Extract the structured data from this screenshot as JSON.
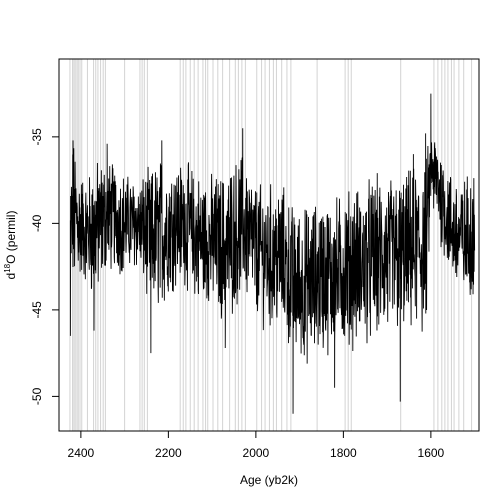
{
  "chart_data": {
    "type": "line",
    "title": "",
    "xlabel": "Age (yb2k)",
    "ylabel": "d18O (permil)",
    "ylabel_parts": {
      "prefix": "d",
      "superscript": "18",
      "suffix": "O (permil)"
    },
    "x_reversed": true,
    "xlim": [
      2450,
      1490
    ],
    "ylim": [
      -52,
      -30.5
    ],
    "x_ticks": [
      2400,
      2200,
      2000,
      1800,
      1600
    ],
    "y_ticks": [
      -35,
      -40,
      -45,
      -50
    ],
    "grid": false,
    "legend": "none",
    "colors": {
      "series": "#000000",
      "markers": "#d3d3d3",
      "axis": "#000000"
    },
    "reference_lines_x": [
      2425,
      2419,
      2416,
      2413,
      2409,
      2406,
      2402,
      2398,
      2385,
      2371,
      2366,
      2361,
      2355,
      2349,
      2344,
      2300,
      2265,
      2260,
      2255,
      2248,
      2173,
      2166,
      2160,
      2150,
      2141,
      2132,
      2121,
      2115,
      2110,
      2098,
      2087,
      2076,
      2060,
      2047,
      2040,
      2032,
      2024,
      1998,
      1987,
      1979,
      1969,
      1960,
      1953,
      1941,
      1929,
      1920,
      1860,
      1796,
      1789,
      1782,
      1669,
      1593,
      1584,
      1575,
      1568,
      1561,
      1553,
      1547,
      1536,
      1525,
      1507
    ],
    "series": [
      {
        "x_start": 2424,
        "x_end": 1500,
        "segments": [
          {
            "x": 2424,
            "mean": -40.5,
            "spread": 3.5,
            "min": -46.5
          },
          {
            "x": 2418,
            "mean": -39.5,
            "spread": 3.8,
            "max": -35.2
          },
          {
            "x": 2405,
            "mean": -40.0,
            "spread": 3.0
          },
          {
            "x": 2390,
            "mean": -40.5,
            "spread": 2.5
          },
          {
            "x": 2370,
            "mean": -40.5,
            "spread": 3.5,
            "min": -46.2
          },
          {
            "x": 2340,
            "mean": -39.5,
            "spread": 2.8,
            "max": -35.4
          },
          {
            "x": 2300,
            "mean": -40.0,
            "spread": 2.5
          },
          {
            "x": 2270,
            "mean": -40.0,
            "spread": 2.2
          },
          {
            "x": 2240,
            "mean": -41.0,
            "spread": 3.5,
            "min": -47.5
          },
          {
            "x": 2215,
            "mean": -40.5,
            "spread": 3.8,
            "max": -35.2
          },
          {
            "x": 2190,
            "mean": -40.0,
            "spread": 3.2
          },
          {
            "x": 2160,
            "mean": -40.0,
            "spread": 3.0
          },
          {
            "x": 2130,
            "mean": -41.0,
            "spread": 3.3
          },
          {
            "x": 2100,
            "mean": -41.0,
            "spread": 3.2
          },
          {
            "x": 2070,
            "mean": -41.5,
            "spread": 3.8,
            "min": -47.2
          },
          {
            "x": 2030,
            "mean": -40.0,
            "spread": 3.5,
            "max": -34.5
          },
          {
            "x": 2000,
            "mean": -41.5,
            "spread": 3.2
          },
          {
            "x": 1970,
            "mean": -42.0,
            "spread": 3.6
          },
          {
            "x": 1940,
            "mean": -42.0,
            "spread": 3.6
          },
          {
            "x": 1915,
            "mean": -43.5,
            "spread": 3.8,
            "min": -51.0
          },
          {
            "x": 1880,
            "mean": -43.5,
            "spread": 3.8
          },
          {
            "x": 1850,
            "mean": -43.0,
            "spread": 3.8
          },
          {
            "x": 1820,
            "mean": -43.0,
            "spread": 3.8,
            "min": -49.5
          },
          {
            "x": 1790,
            "mean": -42.5,
            "spread": 3.8
          },
          {
            "x": 1760,
            "mean": -42.5,
            "spread": 4.0
          },
          {
            "x": 1730,
            "mean": -42.0,
            "spread": 4.0
          },
          {
            "x": 1700,
            "mean": -42.0,
            "spread": 4.0
          },
          {
            "x": 1670,
            "mean": -42.0,
            "spread": 4.0,
            "min": -50.3
          },
          {
            "x": 1640,
            "mean": -41.5,
            "spread": 4.0,
            "max": -36.0
          },
          {
            "x": 1612,
            "mean": -41.5,
            "spread": 4.5,
            "max": -34.8
          },
          {
            "x": 1600,
            "mean": -37.0,
            "spread": 2.0,
            "max": -32.5
          },
          {
            "x": 1588,
            "mean": -37.5,
            "spread": 2.3
          },
          {
            "x": 1570,
            "mean": -39.0,
            "spread": 2.5
          },
          {
            "x": 1550,
            "mean": -40.5,
            "spread": 2.8
          },
          {
            "x": 1525,
            "mean": -41.0,
            "spread": 3.0
          },
          {
            "x": 1510,
            "mean": -40.5,
            "spread": 3.2
          },
          {
            "x": 1500,
            "mean": -40.5,
            "spread": 3.0
          }
        ]
      }
    ]
  }
}
